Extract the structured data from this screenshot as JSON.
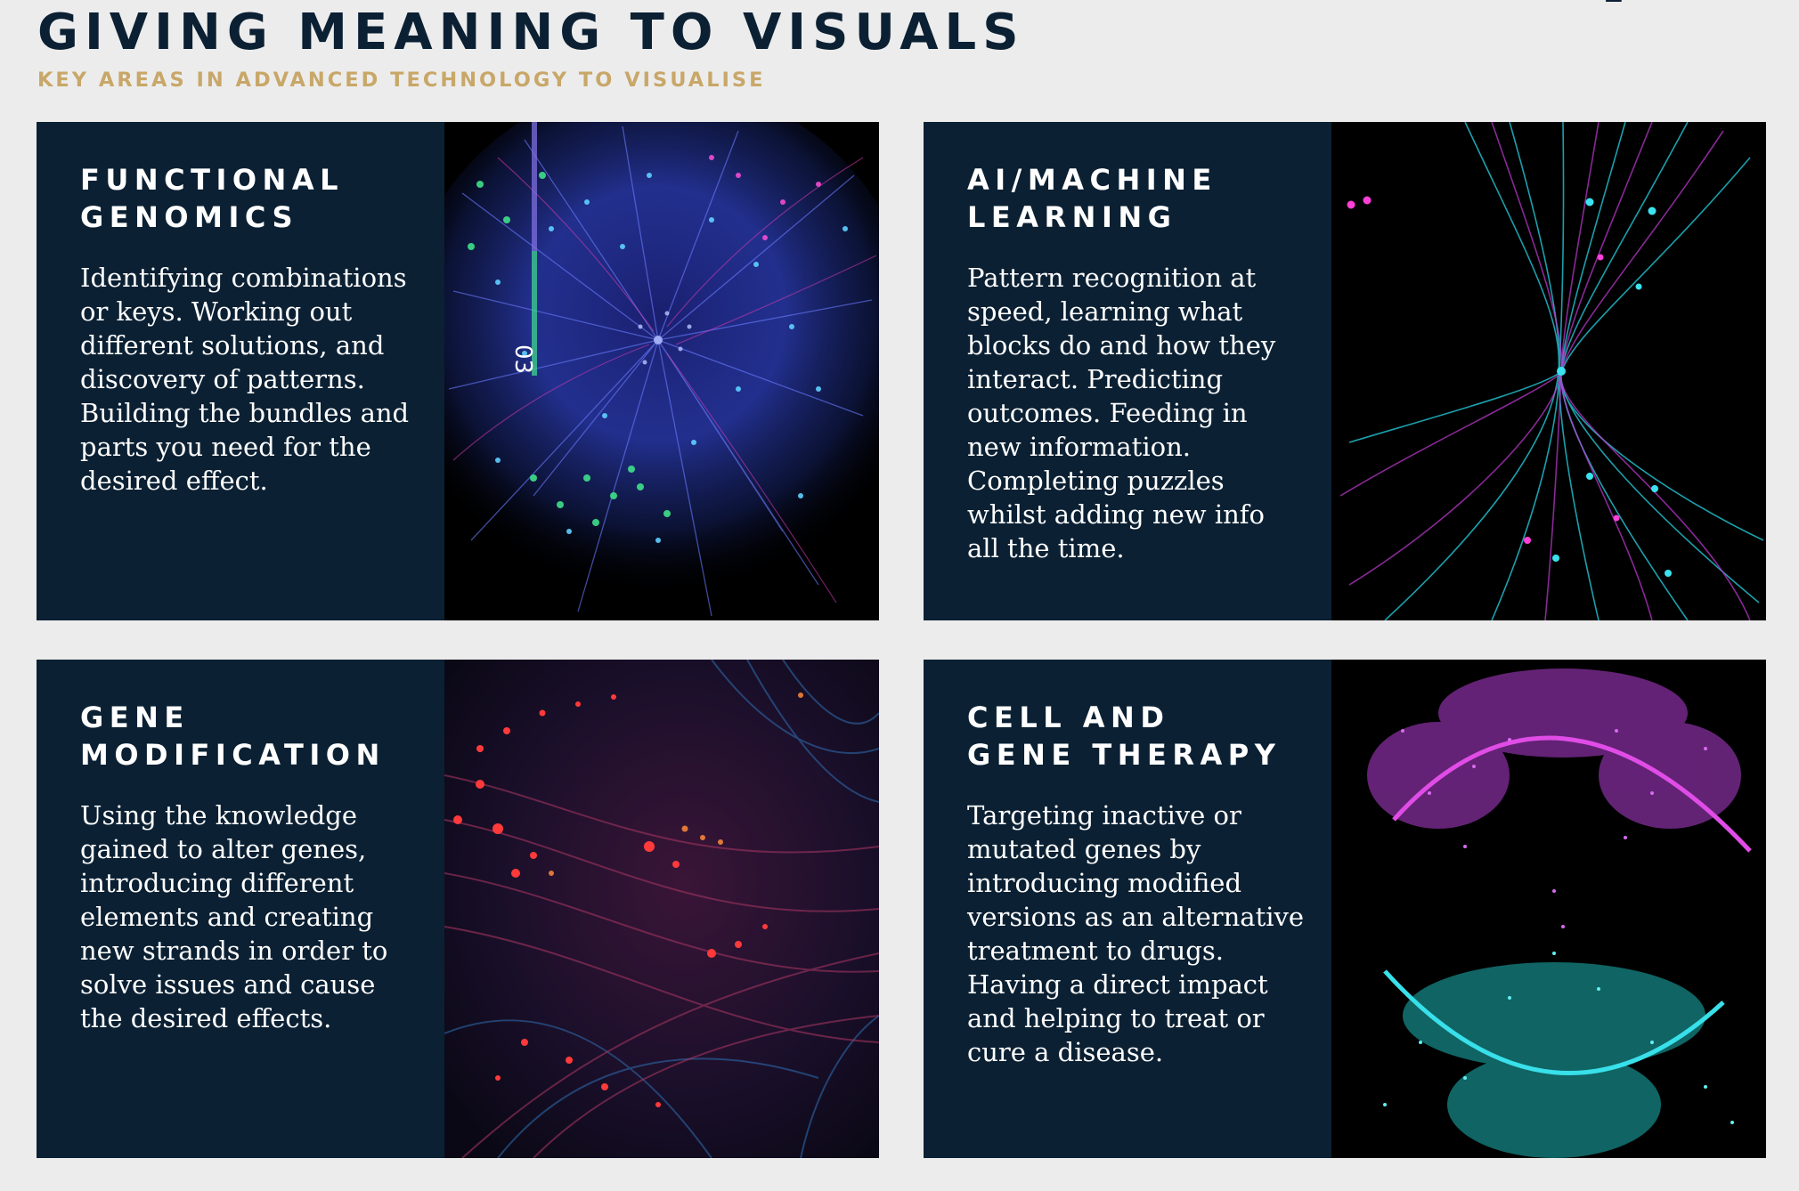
{
  "header": {
    "title": "GIVING MEANING TO VISUALS",
    "subtitle": "KEY AREAS IN ADVANCED TECHNOLOGY TO VISUALISE"
  },
  "cards": [
    {
      "heading_line1": "FUNCTIONAL",
      "heading_line2": "GENOMICS",
      "body": "Identifying combinations or keys. Working out different solutions, and discovery of patterns. Building the bundles and parts you need for the desired effect.",
      "image_label": "03"
    },
    {
      "heading_line1": "AI/MACHINE",
      "heading_line2": "LEARNING",
      "body": "Pattern recognition at speed, learning what blocks do and how they interact. Predicting outcomes. Feeding in new information. Completing puzzles whilst adding new info all the time."
    },
    {
      "heading_line1": "GENE",
      "heading_line2": "MODIFICATION",
      "body": "Using the knowledge gained to alter genes, introducing different elements and creating new strands in order to solve issues and cause the desired effects."
    },
    {
      "heading_line1": "CELL AND",
      "heading_line2": "GENE THERAPY",
      "body": "Targeting inactive or mutated genes by introducing modified versions as an alternative treatment to drugs. Having a direct impact and helping to treat or cure a disease."
    }
  ],
  "colors": {
    "navy": "#0b2033",
    "gold": "#c8a768",
    "background": "#ececec"
  }
}
